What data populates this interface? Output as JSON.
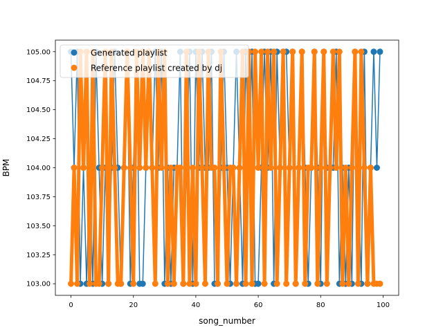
{
  "chart_data": {
    "type": "line",
    "xlabel": "song_number",
    "ylabel": "BPM",
    "xlim": [
      -5,
      105
    ],
    "ylim": [
      102.9,
      105.1
    ],
    "xticks": [
      0,
      20,
      40,
      60,
      80,
      100
    ],
    "xtick_labels": [
      "0",
      "20",
      "40",
      "60",
      "80",
      "100"
    ],
    "yticks": [
      103.0,
      103.25,
      103.5,
      103.75,
      104.0,
      104.25,
      104.5,
      104.75,
      105.0
    ],
    "ytick_labels": [
      "103.00",
      "103.25",
      "103.50",
      "103.75",
      "104.00",
      "104.25",
      "104.50",
      "104.75",
      "105.00"
    ],
    "grid": false,
    "legend_position": "top-left",
    "x": [
      0,
      1,
      2,
      3,
      4,
      5,
      6,
      7,
      8,
      9,
      10,
      11,
      12,
      13,
      14,
      15,
      16,
      17,
      18,
      19,
      20,
      21,
      22,
      23,
      24,
      25,
      26,
      27,
      28,
      29,
      30,
      31,
      32,
      33,
      34,
      35,
      36,
      37,
      38,
      39,
      40,
      41,
      42,
      43,
      44,
      45,
      46,
      47,
      48,
      49,
      50,
      51,
      52,
      53,
      54,
      55,
      56,
      57,
      58,
      59,
      60,
      61,
      62,
      63,
      64,
      65,
      66,
      67,
      68,
      69,
      70,
      71,
      72,
      73,
      74,
      75,
      76,
      77,
      78,
      79,
      80,
      81,
      82,
      83,
      84,
      85,
      86,
      87,
      88,
      89,
      90,
      91,
      92,
      93,
      94,
      95,
      96,
      97,
      98,
      99
    ],
    "series": [
      {
        "name": "Generated playlist",
        "color": "#1f77b4",
        "values": [
          105,
          104,
          105,
          103,
          104,
          103,
          104,
          103,
          105,
          104,
          103,
          104,
          103,
          104,
          105,
          104,
          103,
          104,
          105,
          103,
          104,
          105,
          103,
          103,
          104,
          105,
          104,
          105,
          104,
          105,
          103,
          104,
          103,
          104,
          104,
          105,
          103,
          104,
          105,
          103,
          105,
          104,
          105,
          104,
          104,
          105,
          103,
          103,
          104,
          105,
          104,
          103,
          104,
          105,
          104,
          103,
          105,
          104,
          105,
          103,
          103,
          104,
          105,
          104,
          105,
          103,
          105,
          104,
          105,
          105,
          104,
          105,
          103,
          104,
          105,
          104,
          103,
          104,
          105,
          104,
          103,
          105,
          104,
          104,
          104,
          105,
          103,
          104,
          103,
          104,
          103,
          105,
          104,
          103,
          105,
          103,
          104,
          105,
          104,
          105
        ]
      },
      {
        "name": "Reference playlist created by dj",
        "color": "#ff7f0e",
        "values": [
          103,
          104,
          103,
          105,
          104,
          105,
          103,
          105,
          103,
          103,
          104,
          105,
          103,
          105,
          104,
          103,
          103,
          104,
          105,
          104,
          103,
          105,
          104,
          105,
          104,
          105,
          104,
          103,
          105,
          104,
          105,
          103,
          104,
          103,
          104,
          104,
          103,
          105,
          103,
          104,
          103,
          105,
          104,
          103,
          105,
          104,
          104,
          103,
          105,
          104,
          103,
          104,
          104,
          103,
          104,
          105,
          103,
          105,
          103,
          105,
          104,
          105,
          103,
          105,
          104,
          105,
          103,
          104,
          105,
          103,
          104,
          105,
          103,
          104,
          105,
          103,
          104,
          104,
          105,
          103,
          104,
          105,
          103,
          104,
          105,
          104,
          105,
          103,
          104,
          103,
          104,
          105,
          103,
          105,
          104,
          103,
          104,
          103,
          103,
          103
        ]
      }
    ]
  }
}
